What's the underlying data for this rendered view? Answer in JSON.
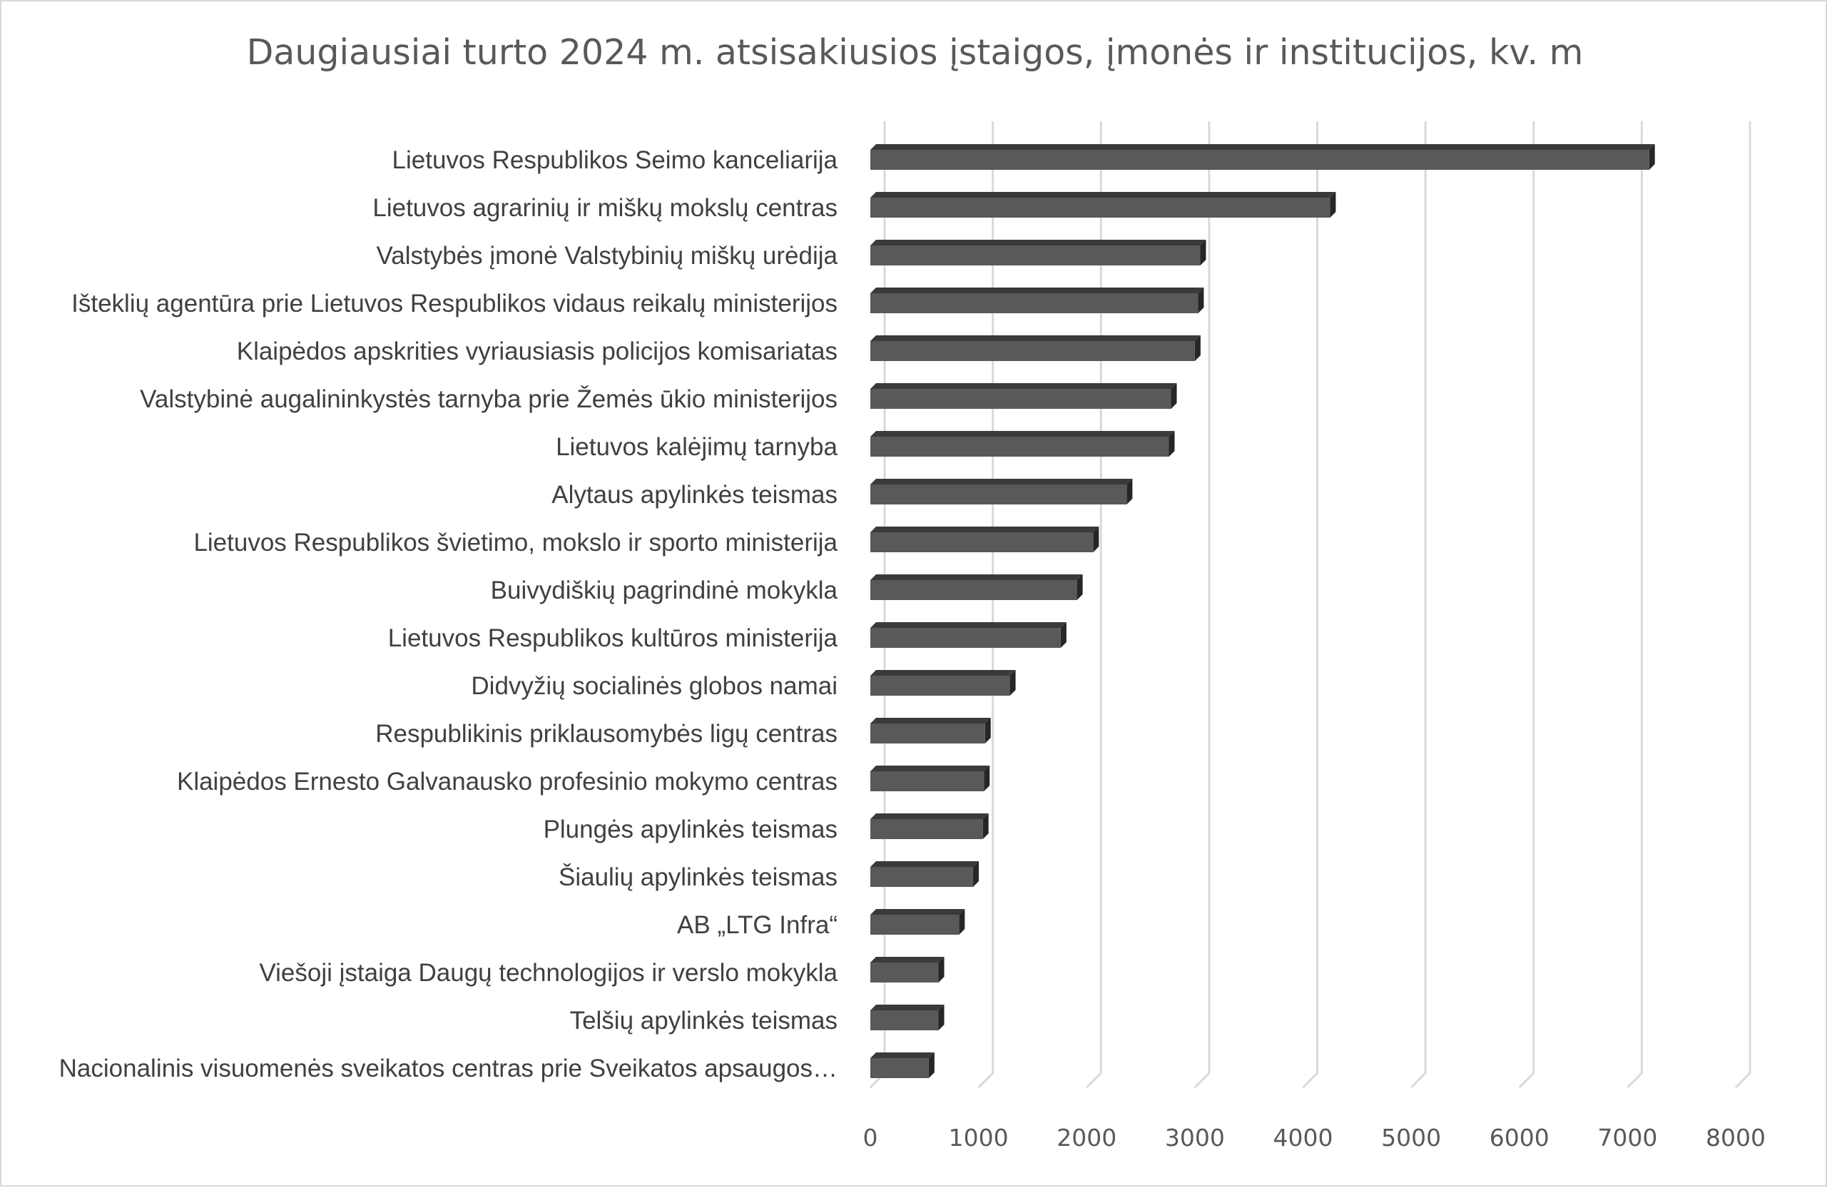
{
  "chart_data": {
    "type": "bar",
    "orientation": "horizontal",
    "style": "3d",
    "title": "Daugiausiai turto 2024 m. atsisakiusios įstaigos, įmonės ir institucijos, kv. m",
    "xlabel": "",
    "ylabel": "",
    "xlim": [
      0,
      8000
    ],
    "ticks": [
      "0",
      "1000",
      "2000",
      "3000",
      "4000",
      "5000",
      "6000",
      "7000",
      "8000"
    ],
    "grid": true,
    "legend": "none",
    "bar_color": "#595959",
    "categories": [
      "Lietuvos Respublikos Seimo kanceliarija",
      "Lietuvos agrarinių ir miškų mokslų centras",
      "Valstybės įmonė Valstybinių miškų urėdija",
      "Išteklių agentūra prie Lietuvos Respublikos vidaus reikalų ministerijos",
      "Klaipėdos apskrities vyriausiasis policijos komisariatas",
      "Valstybinė augalininkystės tarnyba prie Žemės ūkio ministerijos",
      "Lietuvos kalėjimų tarnyba",
      "Alytaus apylinkės teismas",
      "Lietuvos Respublikos švietimo, mokslo ir sporto ministerija",
      "Buivydiškių pagrindinė mokykla",
      "Lietuvos Respublikos kultūros ministerija",
      "Didvyžių socialinės globos namai",
      "Respublikinis priklausomybės ligų centras",
      "Klaipėdos Ernesto Galvanausko profesinio mokymo centras",
      "Plungės apylinkės teismas",
      "Šiaulių apylinkės teismas",
      "AB „LTG Infra“",
      "Viešoji įstaiga Daugų technologijos ir verslo mokykla",
      "Telšių apylinkės teismas",
      "Nacionalinis visuomenės sveikatos centras prie Sveikatos apsaugos…"
    ],
    "values": [
      7200,
      4250,
      3050,
      3030,
      3000,
      2780,
      2760,
      2370,
      2060,
      1910,
      1760,
      1290,
      1060,
      1050,
      1040,
      950,
      820,
      630,
      630,
      540
    ]
  }
}
